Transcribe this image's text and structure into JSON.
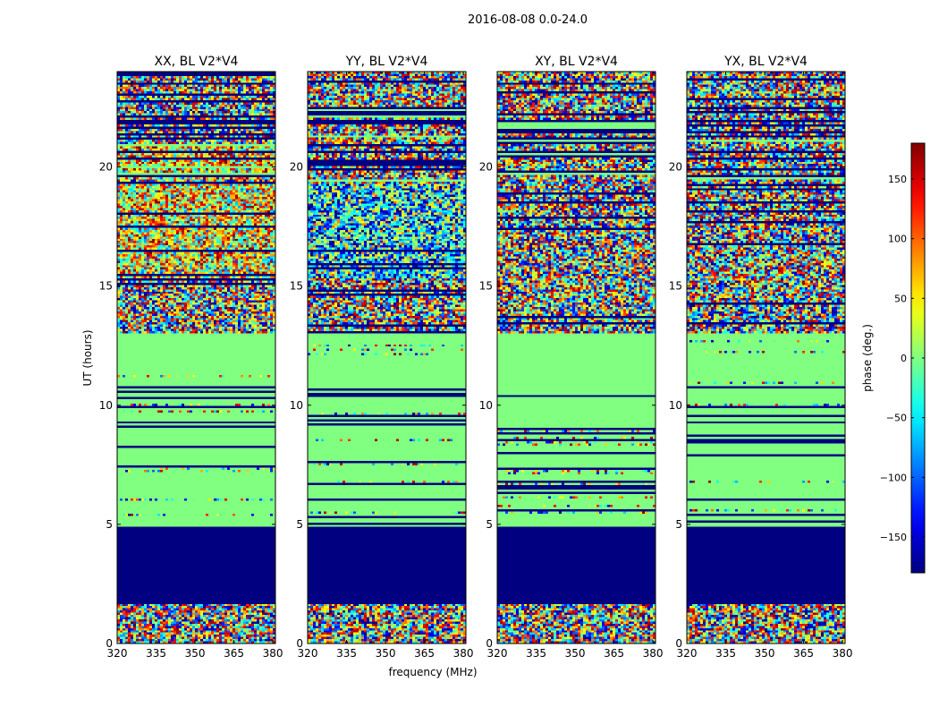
{
  "figure": {
    "suptitle": "2016-08-08 0.0-24.0",
    "xlabel": "frequency (MHz)",
    "ylabel": "UT (hours)"
  },
  "colorbar": {
    "label": "phase (deg.)",
    "range": [
      -180,
      180
    ],
    "ticks": [
      "150",
      "100",
      "50",
      "0",
      "−50",
      "−100",
      "−150"
    ],
    "tick_values": [
      150,
      100,
      50,
      0,
      -50,
      -100,
      -150
    ],
    "colormap": "jet"
  },
  "chart_data": [
    {
      "type": "heatmap",
      "title": "XX, BL V2*V4",
      "xlim": [
        320,
        381
      ],
      "ylim": [
        0,
        24
      ],
      "xticks": [
        "320",
        "335",
        "350",
        "365",
        "380"
      ],
      "xtick_values": [
        320,
        335,
        350,
        365,
        380
      ],
      "yticks": [
        "0",
        "5",
        "10",
        "15",
        "20"
      ],
      "ytick_values": [
        0,
        5,
        10,
        15,
        20
      ],
      "value": "phase (deg.)"
    },
    {
      "type": "heatmap",
      "title": "YY, BL V2*V4",
      "xlim": [
        320,
        381
      ],
      "ylim": [
        0,
        24
      ],
      "xticks": [
        "320",
        "335",
        "350",
        "365",
        "380"
      ],
      "xtick_values": [
        320,
        335,
        350,
        365,
        380
      ],
      "yticks": [
        "0",
        "5",
        "10",
        "15",
        "20"
      ],
      "ytick_values": [
        0,
        5,
        10,
        15,
        20
      ],
      "value": "phase (deg.)"
    },
    {
      "type": "heatmap",
      "title": "XY, BL V2*V4",
      "xlim": [
        320,
        381
      ],
      "ylim": [
        0,
        24
      ],
      "xticks": [
        "320",
        "335",
        "350",
        "365",
        "380"
      ],
      "xtick_values": [
        320,
        335,
        350,
        365,
        380
      ],
      "yticks": [
        "0",
        "5",
        "10",
        "15",
        "20"
      ],
      "ytick_values": [
        0,
        5,
        10,
        15,
        20
      ],
      "value": "phase (deg.)"
    },
    {
      "type": "heatmap",
      "title": "YX, BL V2*V4",
      "xlim": [
        320,
        381
      ],
      "ylim": [
        0,
        24
      ],
      "xticks": [
        "320",
        "335",
        "350",
        "365",
        "380"
      ],
      "xtick_values": [
        320,
        335,
        350,
        365,
        380
      ],
      "yticks": [
        "0",
        "5",
        "10",
        "15",
        "20"
      ],
      "ytick_values": [
        0,
        5,
        10,
        15,
        20
      ],
      "value": "phase (deg.)"
    }
  ]
}
